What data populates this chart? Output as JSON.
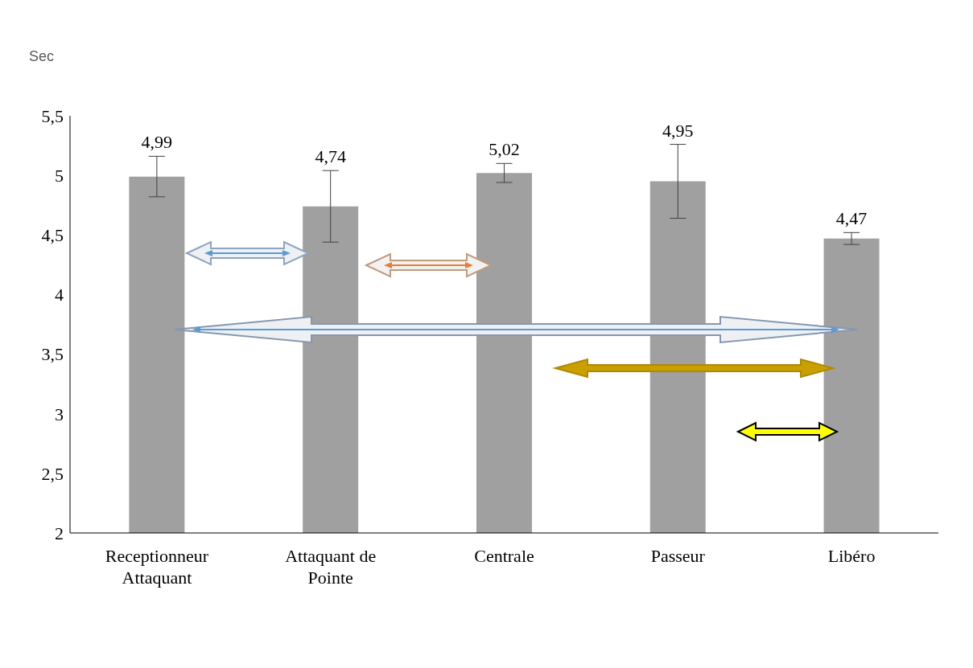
{
  "chart_data": {
    "type": "bar",
    "ylabel": "Sec",
    "categories": [
      "Receptionneur Attaquant",
      "Attaquant de Pointe",
      "Centrale",
      "Passeur",
      "Libéro"
    ],
    "values": [
      4.99,
      4.74,
      5.02,
      4.95,
      4.47
    ],
    "errors": [
      0.17,
      0.3,
      0.08,
      0.31,
      0.05
    ],
    "value_labels": [
      "4,99",
      "4,74",
      "5,02",
      "4,95",
      "4,47"
    ],
    "color": "#a0a0a0",
    "ylim": [
      2,
      5.5
    ],
    "yticks": [
      {
        "value": 2,
        "label": "2"
      },
      {
        "value": 2.5,
        "label": "2,5"
      },
      {
        "value": 3,
        "label": "3"
      },
      {
        "value": 3.5,
        "label": "3,5"
      },
      {
        "value": 4,
        "label": "4"
      },
      {
        "value": 4.5,
        "label": "4,5"
      },
      {
        "value": 5,
        "label": "5"
      },
      {
        "value": 5.5,
        "label": "5,5"
      }
    ],
    "grid": false,
    "legend": false
  }
}
